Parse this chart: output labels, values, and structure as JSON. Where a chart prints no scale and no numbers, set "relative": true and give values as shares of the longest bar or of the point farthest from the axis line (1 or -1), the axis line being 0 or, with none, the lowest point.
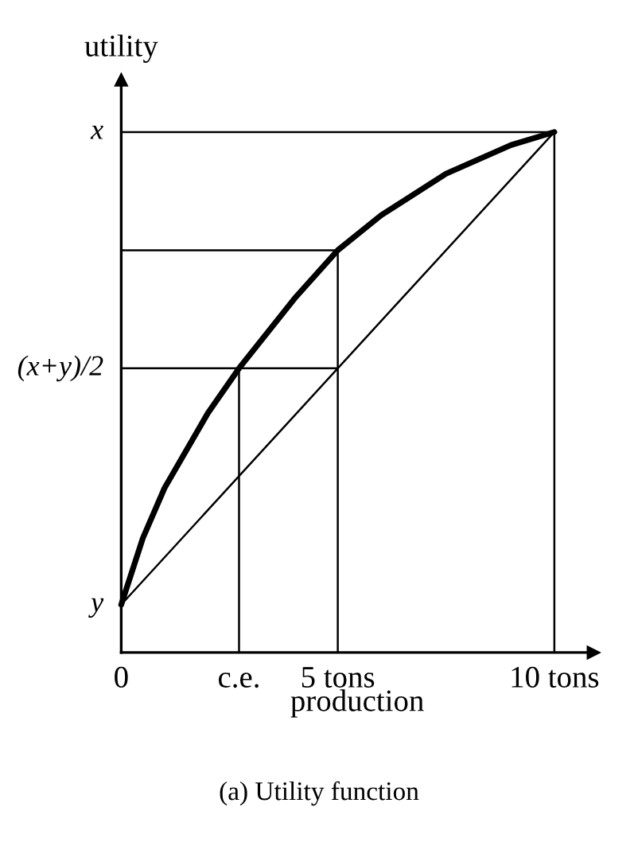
{
  "chart_data": {
    "type": "line",
    "relative": true,
    "xlabel": "production",
    "ylabel": "utility",
    "annotations": [
      "(a) Utility function",
      "y",
      "(x+y)/2",
      "x"
    ],
    "xlim": [
      0,
      10.9
    ],
    "xticks": [
      {
        "value": 0,
        "label": "0"
      },
      {
        "value": 2.72,
        "label": "c.e."
      },
      {
        "value": 5,
        "label": "5 tons"
      },
      {
        "value": 10,
        "label": "10 tons"
      }
    ],
    "grid": false,
    "marker": "none",
    "line_style": "solid",
    "series": [
      {
        "color": "#000000",
        "x": [
          0,
          0.5,
          1,
          2,
          2.72,
          4,
          5,
          6,
          7.5,
          9,
          10
        ],
        "values": [
          0.092,
          0.22,
          0.316,
          0.46,
          0.546,
          0.68,
          0.773,
          0.84,
          0.92,
          0.975,
          1
        ]
      },
      {
        "color": "#000000",
        "x": [
          0,
          10
        ],
        "values": [
          0.092,
          1
        ]
      },
      {
        "color": "#000000",
        "x": [
          0,
          10
        ],
        "values": [
          1,
          1
        ]
      },
      {
        "color": "#000000",
        "x": [
          10,
          10
        ],
        "values": [
          1,
          0
        ]
      },
      {
        "color": "#000000",
        "x": [
          0,
          5
        ],
        "values": [
          0.773,
          0.773
        ]
      },
      {
        "color": "#000000",
        "x": [
          5,
          5
        ],
        "values": [
          0.773,
          0
        ]
      },
      {
        "color": "#000000",
        "x": [
          0,
          5
        ],
        "values": [
          0.546,
          0.546
        ]
      },
      {
        "color": "#000000",
        "x": [
          2.72,
          2.72
        ],
        "values": [
          0.546,
          0
        ]
      }
    ]
  }
}
